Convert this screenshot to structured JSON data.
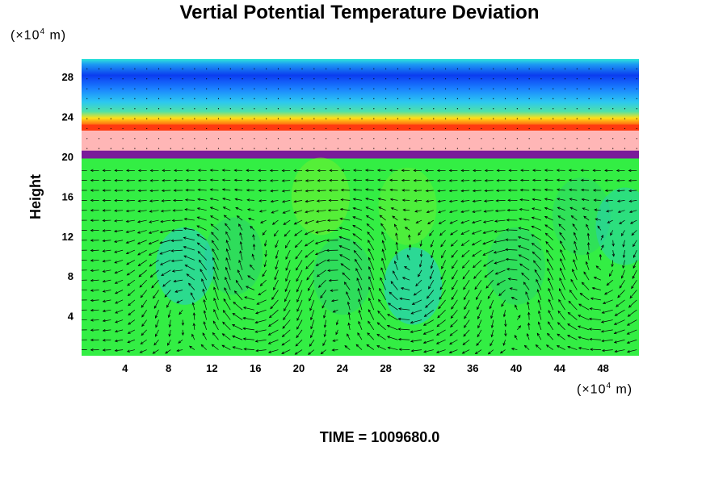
{
  "chart_data": {
    "type": "heatmap",
    "title": "Vertial Potential Temperature Deviation",
    "ylabel": "Height",
    "x_unit": {
      "prefix": "(×10",
      "exp": "4",
      "suffix": " m)"
    },
    "y_unit": {
      "prefix": "(×10",
      "exp": "4",
      "suffix": " m)"
    },
    "xlim": [
      0,
      51.3
    ],
    "ylim": [
      0,
      29.8
    ],
    "x_ticks": [
      4,
      8,
      12,
      16,
      20,
      24,
      28,
      32,
      36,
      40,
      44,
      48
    ],
    "y_ticks": [
      4,
      8,
      12,
      16,
      20,
      24,
      28
    ],
    "vector_overlay": true,
    "layers": [
      {
        "y_from": 0,
        "y_to": 19.8,
        "color": "#33ee44"
      },
      {
        "y_from": 19.8,
        "y_to": 20.6,
        "color": "#7a1a9a"
      },
      {
        "y_from": 20.6,
        "y_to": 22.6,
        "color": "#ffb6b6"
      },
      {
        "y_from": 22.6,
        "y_to": 23.2,
        "color": "#ff3a10"
      },
      {
        "y_from": 23.2,
        "y_to": 29.8,
        "color": "#2a6cff"
      }
    ],
    "circulation_centers_x": [
      10,
      16,
      24,
      30,
      40,
      48
    ]
  },
  "footer": {
    "time_label": "TIME = 1009680.0"
  }
}
